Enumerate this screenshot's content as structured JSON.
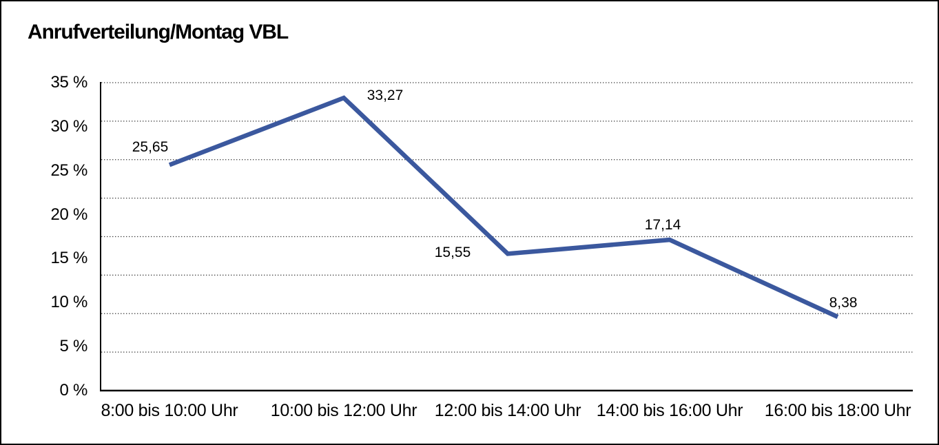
{
  "chart_data": {
    "type": "line",
    "title": "Anrufverteilung/Montag VBL",
    "categories": [
      "8:00 bis 10:00 Uhr",
      "10:00 bis 12:00 Uhr",
      "12:00 bis 14:00 Uhr",
      "14:00 bis 16:00 Uhr",
      "16:00 bis 18:00 Uhr"
    ],
    "values": [
      25.65,
      33.27,
      15.55,
      17.14,
      8.38
    ],
    "data_labels": [
      "25,65",
      "33,27",
      "15,55",
      "17,14",
      "8,38"
    ],
    "unit": "%",
    "y_axis": {
      "min": 0,
      "max": 35,
      "tick_labels": [
        "35 %",
        "30 %",
        "25 %",
        "20 %",
        "15 %",
        "10 %",
        "5 %",
        "0 %"
      ],
      "tick_values": [
        35,
        30,
        25,
        20,
        15,
        10,
        5,
        0
      ],
      "gridline_divisions": 8,
      "gridline_style": "dotted"
    },
    "legend": "none",
    "colors": {
      "line": "#3B589E",
      "axis": "#000000",
      "grid": "#3a3a3a",
      "text": "#000000",
      "background": "#ffffff",
      "border": "#000000"
    }
  }
}
